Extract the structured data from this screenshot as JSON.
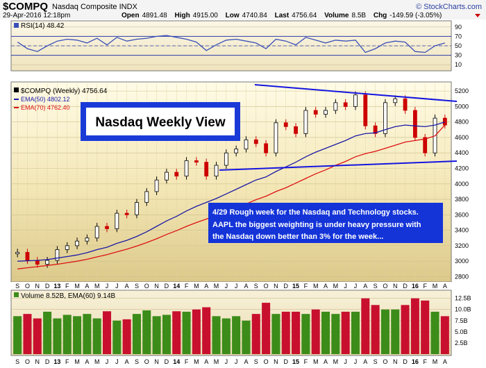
{
  "header": {
    "symbol": "$COMPQ",
    "name": "Nasdaq Composite INDX",
    "watermark": "© StockCharts.com",
    "datetime": "29-Apr-2016 12:18pm",
    "open_label": "Open",
    "open": "4891.48",
    "high_label": "High",
    "high": "4915.00",
    "low_label": "Low",
    "low": "4740.84",
    "last_label": "Last",
    "last": "4756.64",
    "volume_label": "Volume",
    "volume": "8.5B",
    "chg_label": "Chg",
    "chg": "-149.59 (-3.05%)",
    "chg_icon": "down-triangle-icon"
  },
  "rsi_panel": {
    "label": "RSI(14) 48.42",
    "ticks": [
      "90",
      "70",
      "50",
      "30",
      "10"
    ]
  },
  "price_panel": {
    "legend_title": "$COMPQ (Weekly) 4756.64",
    "ema50_label": "EMA(50) 4802.12",
    "ema70_label": "EMA(70) 4762.40",
    "ticks": [
      "5200",
      "5000",
      "4800",
      "4600",
      "4400",
      "4200",
      "4000",
      "3800",
      "3600",
      "3400",
      "3200",
      "3000",
      "2800"
    ],
    "title_box": "Nasdaq Weekly View",
    "annotation_lines": [
      "4/29  Rough week for the Nasdaq and Technology stocks.",
      "AAPL the biggest weighting is under heavy pressure with",
      "the Nasdaq down better than 3% for the week..."
    ]
  },
  "volume_panel": {
    "label": "Volume 8.52B, EMA(60) 9.14B",
    "ticks": [
      "12.5B",
      "10.0B",
      "7.5B",
      "5.0B",
      "2.5B"
    ]
  },
  "xaxis": {
    "labels": [
      "S",
      "O",
      "N",
      "D",
      "13",
      "F",
      "M",
      "A",
      "M",
      "J",
      "J",
      "A",
      "S",
      "O",
      "N",
      "D",
      "14",
      "F",
      "M",
      "A",
      "M",
      "J",
      "J",
      "A",
      "S",
      "O",
      "N",
      "D",
      "15",
      "F",
      "M",
      "A",
      "M",
      "J",
      "J",
      "A",
      "S",
      "O",
      "N",
      "D",
      "16",
      "F",
      "M",
      "A"
    ]
  },
  "colors": {
    "up": "#000000",
    "down": "#cc0000",
    "ema50": "#1a1aa6",
    "ema70": "#dd1111",
    "trendline": "#1515e0",
    "vol_up": "#3c8c1a",
    "vol_down": "#c8102e",
    "rsi_line": "#3a4fb8",
    "header_bg": "#f4f4f4",
    "annotation_bg": "#1434d8"
  },
  "chart_data": [
    {
      "type": "line",
      "title": "RSI(14)",
      "ylim": [
        0,
        100
      ],
      "reference_lines": [
        70,
        30
      ],
      "x": [
        "2012-09",
        "2012-10",
        "2012-11",
        "2012-12",
        "2013-01",
        "2013-02",
        "2013-03",
        "2013-04",
        "2013-05",
        "2013-06",
        "2013-07",
        "2013-08",
        "2013-09",
        "2013-10",
        "2013-11",
        "2013-12",
        "2014-01",
        "2014-02",
        "2014-03",
        "2014-04",
        "2014-05",
        "2014-06",
        "2014-07",
        "2014-08",
        "2014-09",
        "2014-10",
        "2014-11",
        "2014-12",
        "2015-01",
        "2015-02",
        "2015-03",
        "2015-04",
        "2015-05",
        "2015-06",
        "2015-07",
        "2015-08",
        "2015-09",
        "2015-10",
        "2015-11",
        "2015-12",
        "2016-01",
        "2016-02",
        "2016-03",
        "2016-04"
      ],
      "series": [
        {
          "name": "RSI(14)",
          "values": [
            58,
            44,
            38,
            50,
            60,
            64,
            62,
            56,
            66,
            52,
            68,
            60,
            64,
            66,
            70,
            72,
            68,
            64,
            58,
            40,
            52,
            62,
            64,
            60,
            56,
            44,
            64,
            60,
            52,
            68,
            62,
            56,
            62,
            60,
            62,
            36,
            44,
            56,
            60,
            58,
            38,
            36,
            50,
            56
          ]
        }
      ]
    },
    {
      "type": "line",
      "title": "$COMPQ (Weekly) 4756.64",
      "ylim": [
        2750,
        5300
      ],
      "x": [
        "2012-09",
        "2012-10",
        "2012-11",
        "2012-12",
        "2013-01",
        "2013-02",
        "2013-03",
        "2013-04",
        "2013-05",
        "2013-06",
        "2013-07",
        "2013-08",
        "2013-09",
        "2013-10",
        "2013-11",
        "2013-12",
        "2014-01",
        "2014-02",
        "2014-03",
        "2014-04",
        "2014-05",
        "2014-06",
        "2014-07",
        "2014-08",
        "2014-09",
        "2014-10",
        "2014-11",
        "2014-12",
        "2015-01",
        "2015-02",
        "2015-03",
        "2015-04",
        "2015-05",
        "2015-06",
        "2015-07",
        "2015-08",
        "2015-09",
        "2015-10",
        "2015-11",
        "2015-12",
        "2016-01",
        "2016-02",
        "2016-03",
        "2016-04"
      ],
      "series": [
        {
          "name": "$COMPQ",
          "values": [
            3115,
            3010,
            2960,
            3010,
            3150,
            3200,
            3260,
            3300,
            3450,
            3420,
            3620,
            3600,
            3760,
            3900,
            4050,
            4150,
            4100,
            4300,
            4280,
            4100,
            4240,
            4400,
            4450,
            4570,
            4520,
            4400,
            4790,
            4740,
            4650,
            4950,
            4900,
            4950,
            5050,
            5000,
            5150,
            4750,
            4650,
            5050,
            5100,
            4950,
            4600,
            4400,
            4850,
            4760
          ]
        },
        {
          "name": "EMA(50)",
          "values": [
            3000,
            3005,
            3010,
            3020,
            3040,
            3060,
            3080,
            3110,
            3150,
            3180,
            3230,
            3270,
            3320,
            3380,
            3450,
            3520,
            3580,
            3650,
            3710,
            3760,
            3810,
            3870,
            3930,
            3990,
            4050,
            4090,
            4160,
            4220,
            4280,
            4350,
            4410,
            4460,
            4510,
            4560,
            4620,
            4650,
            4660,
            4700,
            4740,
            4760,
            4750,
            4740,
            4760,
            4800
          ]
        },
        {
          "name": "EMA(70)",
          "values": [
            2900,
            2915,
            2930,
            2945,
            2960,
            2980,
            3000,
            3025,
            3055,
            3085,
            3120,
            3155,
            3195,
            3240,
            3290,
            3345,
            3395,
            3450,
            3500,
            3545,
            3590,
            3640,
            3690,
            3740,
            3795,
            3840,
            3900,
            3950,
            4010,
            4070,
            4130,
            4180,
            4240,
            4290,
            4350,
            4390,
            4420,
            4460,
            4500,
            4540,
            4560,
            4580,
            4620,
            4760
          ]
        }
      ]
    },
    {
      "type": "bar",
      "title": "Volume 8.52B, EMA(60) 9.14B",
      "ylim": [
        0,
        14
      ],
      "unit": "B",
      "x": [
        "2012-09",
        "2012-10",
        "2012-11",
        "2012-12",
        "2013-01",
        "2013-02",
        "2013-03",
        "2013-04",
        "2013-05",
        "2013-06",
        "2013-07",
        "2013-08",
        "2013-09",
        "2013-10",
        "2013-11",
        "2013-12",
        "2014-01",
        "2014-02",
        "2014-03",
        "2014-04",
        "2014-05",
        "2014-06",
        "2014-07",
        "2014-08",
        "2014-09",
        "2014-10",
        "2014-11",
        "2014-12",
        "2015-01",
        "2015-02",
        "2015-03",
        "2015-04",
        "2015-05",
        "2015-06",
        "2015-07",
        "2015-08",
        "2015-09",
        "2015-10",
        "2015-11",
        "2015-12",
        "2016-01",
        "2016-02",
        "2016-03",
        "2016-04"
      ],
      "series": [
        {
          "name": "Volume",
          "values": [
            8.5,
            9.0,
            8.0,
            9.5,
            8.0,
            8.8,
            8.5,
            9.0,
            8.0,
            9.6,
            7.5,
            7.8,
            9.0,
            9.8,
            8.5,
            8.8,
            9.6,
            9.5,
            10.0,
            10.5,
            8.5,
            8.0,
            8.5,
            7.5,
            9.0,
            11.5,
            9.0,
            9.5,
            9.5,
            9.0,
            10.0,
            9.5,
            9.0,
            9.5,
            9.5,
            12.5,
            11.0,
            10.0,
            10.0,
            11.0,
            12.5,
            12.0,
            9.5,
            8.5
          ]
        }
      ]
    }
  ]
}
